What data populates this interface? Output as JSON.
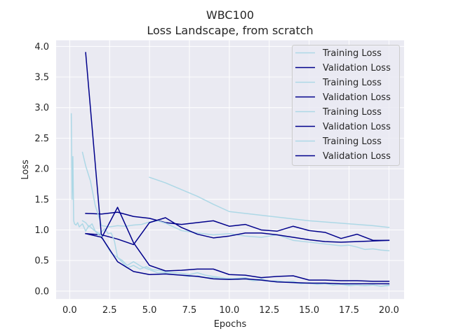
{
  "chart_data": {
    "type": "line",
    "title": "WBC100",
    "subtitle": "Loss Landscape, from scratch",
    "xlabel": "Epochs",
    "ylabel": "Loss",
    "xlim": [
      -0.85,
      20.95
    ],
    "ylim": [
      -0.13,
      4.1
    ],
    "x_ticks": [
      0.0,
      2.5,
      5.0,
      7.5,
      10.0,
      12.5,
      15.0,
      17.5,
      20.0
    ],
    "x_tick_labels": [
      "0.0",
      "2.5",
      "5.0",
      "7.5",
      "10.0",
      "12.5",
      "15.0",
      "17.5",
      "20.0"
    ],
    "y_ticks": [
      0.0,
      0.5,
      1.0,
      1.5,
      2.0,
      2.5,
      3.0,
      3.5,
      4.0
    ],
    "y_tick_labels": [
      "0.0",
      "0.5",
      "1.0",
      "1.5",
      "2.0",
      "2.5",
      "3.0",
      "3.5",
      "4.0"
    ],
    "grid": true,
    "background": "#eaeaf2",
    "legend_position": "upper right",
    "colors": {
      "training": "#add8e6",
      "validation": "#00008b"
    },
    "series": [
      {
        "name": "Training Loss",
        "role": "training",
        "x": [
          5,
          6,
          7,
          8,
          9,
          10,
          11,
          12,
          13,
          14,
          15,
          16,
          17,
          18,
          19,
          20
        ],
        "y": [
          1.86,
          1.77,
          1.66,
          1.55,
          1.42,
          1.3,
          1.27,
          1.24,
          1.21,
          1.18,
          1.15,
          1.13,
          1.11,
          1.09,
          1.07,
          1.04
        ]
      },
      {
        "name": "Validation Loss",
        "role": "validation",
        "x": [
          1,
          2,
          3,
          4,
          5,
          6,
          7,
          8,
          9,
          10,
          11,
          12,
          13,
          14,
          15,
          16,
          17,
          18,
          19,
          20
        ],
        "y": [
          1.27,
          1.26,
          1.29,
          1.22,
          1.19,
          1.12,
          1.09,
          1.12,
          1.15,
          1.06,
          1.09,
          1.0,
          0.98,
          1.06,
          0.99,
          0.96,
          0.86,
          0.93,
          0.83,
          0.83
        ]
      },
      {
        "name": "Training Loss",
        "role": "training",
        "x": [
          0.8,
          1.0,
          1.3,
          1.6,
          2.0,
          2.5,
          3.0,
          3.5,
          4.0,
          4.5,
          5.0,
          5.5,
          6.0,
          6.5,
          7.0,
          7.5,
          8.0,
          9.0,
          10.0,
          11.0,
          12.0,
          13.0,
          14.0,
          15.0,
          16.0,
          17.0,
          17.5,
          18.0,
          18.5,
          19.0,
          19.5,
          20.0
        ],
        "y": [
          2.27,
          2.05,
          1.8,
          1.4,
          1.07,
          1.05,
          1.07,
          1.06,
          1.08,
          1.09,
          1.13,
          1.15,
          1.11,
          1.05,
          0.99,
          0.97,
          0.95,
          0.92,
          0.94,
          0.9,
          0.88,
          0.92,
          0.83,
          0.8,
          0.77,
          0.74,
          0.75,
          0.72,
          0.68,
          0.69,
          0.67,
          0.66
        ]
      },
      {
        "name": "Validation Loss",
        "role": "validation",
        "x": [
          1,
          2,
          3,
          4,
          5,
          6,
          7,
          8,
          9,
          10,
          11,
          12,
          13,
          14,
          15,
          16,
          17,
          18,
          19,
          20
        ],
        "y": [
          0.94,
          0.92,
          0.85,
          0.76,
          1.12,
          1.2,
          1.04,
          0.93,
          0.87,
          0.9,
          0.95,
          0.95,
          0.92,
          0.88,
          0.84,
          0.81,
          0.8,
          0.81,
          0.82,
          0.83
        ]
      },
      {
        "name": "Training Loss",
        "role": "training",
        "x": [
          0.8,
          1.0,
          1.2,
          1.4,
          1.6,
          1.8,
          2.0,
          2.2,
          2.4,
          2.6,
          2.8,
          3.0,
          3.3,
          3.6,
          4.0,
          4.4,
          4.8,
          5.2,
          5.6,
          6.0,
          6.5,
          7.0,
          7.5,
          8.0,
          8.5,
          9.0,
          9.5,
          10.0,
          10.5,
          11.0,
          11.5,
          12.0,
          12.5,
          13.0,
          13.5,
          14.0,
          14.5,
          15.0,
          15.5,
          16.0,
          16.5,
          17.0,
          17.5,
          18.0,
          18.5,
          19.0,
          19.5,
          20.0
        ],
        "y": [
          1.15,
          1.12,
          1.05,
          1.1,
          0.98,
          0.92,
          0.97,
          1.02,
          0.94,
          0.95,
          0.82,
          0.55,
          0.47,
          0.38,
          0.42,
          0.36,
          0.4,
          0.35,
          0.34,
          0.32,
          0.3,
          0.29,
          0.27,
          0.3,
          0.26,
          0.24,
          0.22,
          0.2,
          0.21,
          0.22,
          0.18,
          0.2,
          0.16,
          0.17,
          0.15,
          0.16,
          0.12,
          0.14,
          0.12,
          0.13,
          0.1,
          0.11,
          0.09,
          0.1,
          0.09,
          0.1,
          0.08,
          0.1
        ]
      },
      {
        "name": "Validation Loss",
        "role": "validation",
        "x": [
          1,
          2,
          3,
          4,
          5,
          6,
          7,
          8,
          9,
          10,
          11,
          12,
          13,
          14,
          15,
          16,
          17,
          18,
          19,
          20
        ],
        "y": [
          3.9,
          0.87,
          1.37,
          0.79,
          0.42,
          0.33,
          0.34,
          0.36,
          0.36,
          0.27,
          0.26,
          0.22,
          0.24,
          0.25,
          0.18,
          0.18,
          0.17,
          0.17,
          0.16,
          0.16
        ]
      },
      {
        "name": "Training Loss",
        "role": "training",
        "x": [
          0.1,
          0.15,
          0.2,
          0.25,
          0.3,
          0.4,
          0.5,
          0.6,
          0.8,
          1.0,
          1.2,
          1.5,
          1.8,
          2.0,
          2.3,
          2.6,
          3.0,
          3.3,
          3.6,
          4.0,
          4.5,
          5.0,
          5.5,
          6.0,
          6.5,
          7.0,
          7.5,
          8.0,
          8.5,
          9.0,
          9.5,
          10.0,
          10.5,
          11.0,
          11.5,
          12.0,
          12.5,
          13.0,
          13.5,
          14.0,
          14.5,
          15.0,
          15.5,
          16.0,
          16.5,
          17.0,
          17.5,
          18.0,
          18.5,
          19.0,
          19.5,
          20.0
        ],
        "y": [
          2.9,
          1.5,
          2.2,
          1.15,
          1.1,
          1.08,
          1.12,
          1.05,
          1.1,
          0.98,
          1.07,
          1.0,
          0.95,
          0.9,
          0.75,
          0.62,
          0.55,
          0.5,
          0.42,
          0.48,
          0.4,
          0.35,
          0.3,
          0.3,
          0.27,
          0.26,
          0.24,
          0.25,
          0.22,
          0.22,
          0.2,
          0.21,
          0.19,
          0.2,
          0.17,
          0.18,
          0.16,
          0.15,
          0.15,
          0.14,
          0.12,
          0.13,
          0.11,
          0.12,
          0.1,
          0.11,
          0.1,
          0.1,
          0.09,
          0.1,
          0.08,
          0.09
        ]
      },
      {
        "name": "Validation Loss",
        "role": "validation",
        "x": [
          1,
          2,
          3,
          4,
          5,
          6,
          7,
          8,
          9,
          10,
          11,
          12,
          13,
          14,
          15,
          16,
          17,
          18,
          19,
          20
        ],
        "y": [
          0.94,
          0.88,
          0.48,
          0.32,
          0.27,
          0.28,
          0.26,
          0.24,
          0.2,
          0.19,
          0.2,
          0.18,
          0.15,
          0.14,
          0.13,
          0.13,
          0.12,
          0.12,
          0.12,
          0.12
        ]
      }
    ]
  }
}
